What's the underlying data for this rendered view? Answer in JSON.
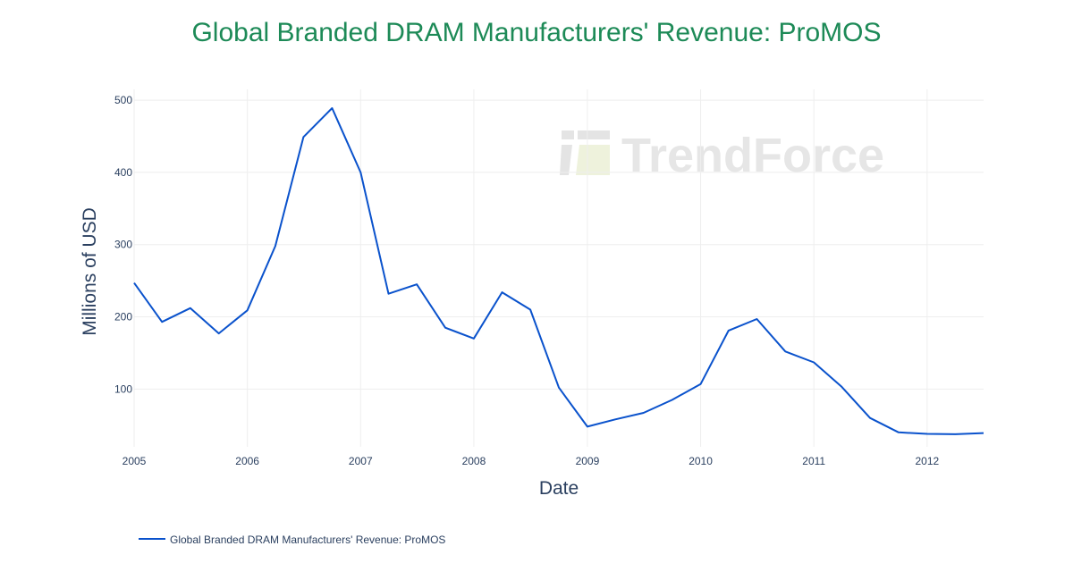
{
  "chart_data": {
    "type": "line",
    "title": "Global Branded DRAM Manufacturers' Revenue: ProMOS",
    "xlabel": "Date",
    "ylabel": "Millions of USD",
    "x_ticks": [
      "2005",
      "2006",
      "2007",
      "2008",
      "2009",
      "2010",
      "2011",
      "2012"
    ],
    "y_ticks": [
      100,
      200,
      300,
      400,
      500
    ],
    "xlim": [
      "2005-01-01",
      "2012-07-01"
    ],
    "ylim": [
      20,
      515
    ],
    "grid": true,
    "legend_position": "bottom-left",
    "watermark": "TrendForce",
    "series": [
      {
        "name": "Global Branded DRAM Manufacturers' Revenue: ProMOS",
        "color": "#0a52cc",
        "x": [
          "2005-01-01",
          "2005-04-01",
          "2005-07-01",
          "2005-10-01",
          "2006-01-01",
          "2006-04-01",
          "2006-07-01",
          "2006-10-01",
          "2007-01-01",
          "2007-04-01",
          "2007-07-01",
          "2007-10-01",
          "2008-01-01",
          "2008-04-01",
          "2008-07-01",
          "2008-10-01",
          "2009-01-01",
          "2009-04-01",
          "2009-07-01",
          "2009-10-01",
          "2010-01-01",
          "2010-04-01",
          "2010-07-01",
          "2010-10-01",
          "2011-01-01",
          "2011-04-01",
          "2011-07-01",
          "2011-10-01",
          "2012-01-01",
          "2012-04-01",
          "2012-07-01"
        ],
        "values": [
          247,
          193,
          212,
          177,
          209,
          298,
          449,
          489,
          400,
          232,
          245,
          185,
          170,
          234,
          210,
          102,
          48,
          58,
          67,
          85,
          107,
          181,
          197,
          152,
          137,
          103,
          60,
          40,
          38,
          37.5,
          39
        ]
      }
    ]
  }
}
